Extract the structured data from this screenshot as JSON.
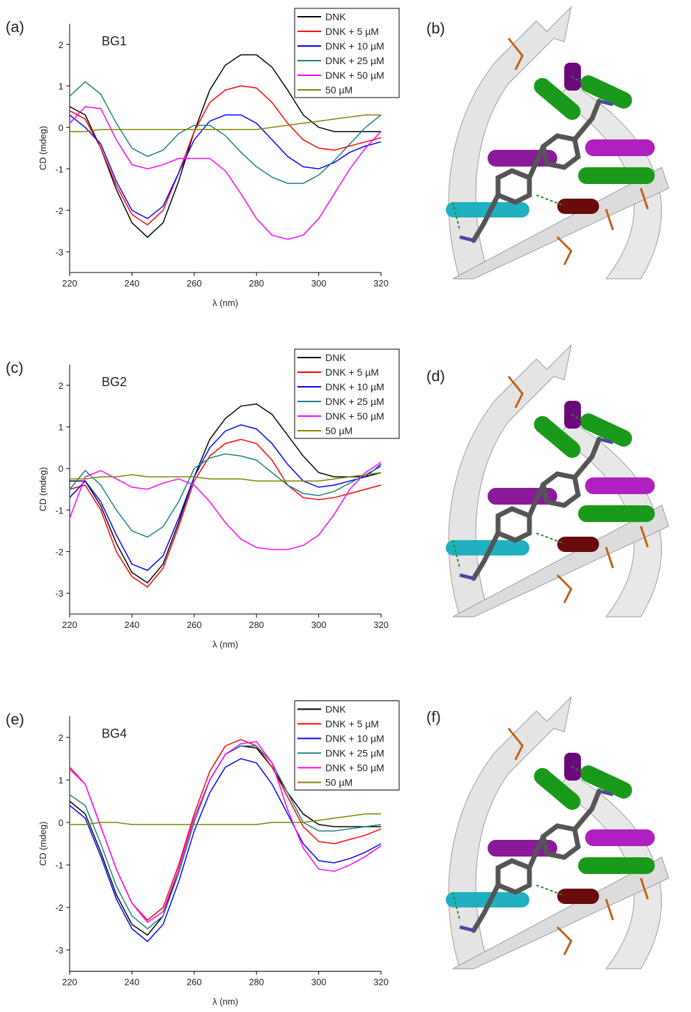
{
  "chart_data": [
    {
      "type": "line",
      "panel_label": "(a)",
      "annotation": "BG1",
      "xlabel": "λ (nm)",
      "ylabel": "CD (mdeg)",
      "x": [
        220,
        225,
        230,
        235,
        240,
        245,
        250,
        255,
        260,
        265,
        270,
        275,
        280,
        285,
        290,
        295,
        300,
        305,
        310,
        315,
        320
      ],
      "xlim": [
        220,
        320
      ],
      "xticks": [
        220,
        240,
        260,
        280,
        300,
        320
      ],
      "ylim": [
        -3.5,
        2.5
      ],
      "yticks": [
        -3,
        -2,
        -1,
        0,
        1,
        2
      ],
      "legend": "upper right",
      "series": [
        {
          "name": "DNK",
          "color": "#000000",
          "values": [
            0.5,
            0.3,
            -0.5,
            -1.5,
            -2.3,
            -2.65,
            -2.3,
            -1.3,
            -0.1,
            0.9,
            1.5,
            1.75,
            1.75,
            1.45,
            0.9,
            0.3,
            0,
            -0.1,
            -0.1,
            -0.1,
            -0.1
          ]
        },
        {
          "name": "DNK + 5 µM",
          "color": "#ff0000",
          "values": [
            0.4,
            0.2,
            -0.5,
            -1.4,
            -2.1,
            -2.35,
            -2.0,
            -1.1,
            -0.1,
            0.6,
            0.9,
            1.0,
            0.95,
            0.6,
            0.1,
            -0.3,
            -0.5,
            -0.55,
            -0.45,
            -0.35,
            -0.25
          ]
        },
        {
          "name": "DNK + 10 µM",
          "color": "#0000ff",
          "values": [
            0.3,
            0.0,
            -0.4,
            -1.3,
            -2.0,
            -2.2,
            -1.9,
            -1.1,
            -0.3,
            0.15,
            0.3,
            0.3,
            0.1,
            -0.3,
            -0.7,
            -0.95,
            -1.0,
            -0.85,
            -0.6,
            -0.45,
            -0.35
          ]
        },
        {
          "name": "DNK + 25 µM",
          "color": "#1a8080",
          "values": [
            0.75,
            1.1,
            0.8,
            0.1,
            -0.5,
            -0.7,
            -0.55,
            -0.15,
            0.05,
            0.05,
            -0.2,
            -0.6,
            -0.95,
            -1.2,
            -1.35,
            -1.35,
            -1.15,
            -0.8,
            -0.4,
            0.0,
            0.3
          ]
        },
        {
          "name": "DNK + 50 µM",
          "color": "#ff00ff",
          "values": [
            0.1,
            0.5,
            0.45,
            -0.3,
            -0.9,
            -1.0,
            -0.9,
            -0.75,
            -0.75,
            -0.75,
            -1.05,
            -1.6,
            -2.2,
            -2.6,
            -2.7,
            -2.6,
            -2.2,
            -1.6,
            -1.0,
            -0.5,
            -0.1
          ]
        },
        {
          "name": "50 µM",
          "color": "#808000",
          "values": [
            -0.1,
            -0.1,
            -0.05,
            -0.05,
            -0.05,
            -0.05,
            -0.05,
            -0.05,
            -0.05,
            -0.05,
            -0.05,
            -0.05,
            -0.05,
            0.0,
            0.05,
            0.1,
            0.15,
            0.2,
            0.25,
            0.3,
            0.3
          ]
        }
      ]
    },
    {
      "type": "line",
      "panel_label": "(c)",
      "annotation": "BG2",
      "xlabel": "λ (nm)",
      "ylabel": "CD (mdeg)",
      "x": [
        220,
        225,
        230,
        235,
        240,
        245,
        250,
        255,
        260,
        265,
        270,
        275,
        280,
        285,
        290,
        295,
        300,
        305,
        310,
        315,
        320
      ],
      "xlim": [
        220,
        320
      ],
      "xticks": [
        220,
        240,
        260,
        280,
        300,
        320
      ],
      "ylim": [
        -3.5,
        2.5
      ],
      "yticks": [
        -3,
        -2,
        -1,
        0,
        1,
        2
      ],
      "legend": "upper right",
      "series": [
        {
          "name": "DNK",
          "color": "#000000",
          "values": [
            -0.3,
            -0.3,
            -0.9,
            -1.8,
            -2.5,
            -2.75,
            -2.3,
            -1.3,
            -0.2,
            0.7,
            1.2,
            1.5,
            1.55,
            1.3,
            0.8,
            0.3,
            -0.1,
            -0.2,
            -0.2,
            -0.2,
            -0.1
          ]
        },
        {
          "name": "DNK + 5 µM",
          "color": "#ff0000",
          "values": [
            -0.5,
            -0.4,
            -1.0,
            -2.0,
            -2.6,
            -2.85,
            -2.4,
            -1.4,
            -0.3,
            0.3,
            0.6,
            0.7,
            0.6,
            0.2,
            -0.4,
            -0.7,
            -0.75,
            -0.7,
            -0.6,
            -0.5,
            -0.4
          ]
        },
        {
          "name": "DNK + 10 µM",
          "color": "#0000ff",
          "values": [
            -0.7,
            -0.3,
            -0.8,
            -1.6,
            -2.3,
            -2.45,
            -2.1,
            -1.2,
            -0.2,
            0.5,
            0.9,
            1.05,
            0.95,
            0.6,
            0.1,
            -0.3,
            -0.45,
            -0.4,
            -0.3,
            -0.2,
            0.1
          ]
        },
        {
          "name": "DNK + 25 µM",
          "color": "#1a8080",
          "values": [
            -0.5,
            -0.05,
            -0.4,
            -1.0,
            -1.5,
            -1.65,
            -1.4,
            -0.8,
            0.0,
            0.25,
            0.35,
            0.3,
            0.2,
            -0.1,
            -0.4,
            -0.6,
            -0.65,
            -0.55,
            -0.35,
            -0.15,
            0.05
          ]
        },
        {
          "name": "DNK + 50 µM",
          "color": "#ff00ff",
          "values": [
            -1.2,
            -0.2,
            -0.05,
            -0.25,
            -0.45,
            -0.5,
            -0.35,
            -0.25,
            -0.4,
            -0.8,
            -1.3,
            -1.7,
            -1.9,
            -1.95,
            -1.95,
            -1.85,
            -1.6,
            -1.1,
            -0.5,
            -0.1,
            0.15
          ]
        },
        {
          "name": "50 µM",
          "color": "#808000",
          "values": [
            -0.25,
            -0.25,
            -0.2,
            -0.2,
            -0.15,
            -0.2,
            -0.2,
            -0.2,
            -0.2,
            -0.25,
            -0.25,
            -0.25,
            -0.3,
            -0.3,
            -0.3,
            -0.3,
            -0.3,
            -0.25,
            -0.2,
            -0.15,
            -0.1
          ]
        }
      ]
    },
    {
      "type": "line",
      "panel_label": "(e)",
      "annotation": "BG4",
      "xlabel": "λ (nm)",
      "ylabel": "CD (mdeg)",
      "x": [
        220,
        225,
        230,
        235,
        240,
        245,
        250,
        255,
        260,
        265,
        270,
        275,
        280,
        285,
        290,
        295,
        300,
        305,
        310,
        315,
        320
      ],
      "xlim": [
        220,
        320
      ],
      "xticks": [
        220,
        240,
        260,
        280,
        300,
        320
      ],
      "ylim": [
        -3.5,
        2.5
      ],
      "yticks": [
        -3,
        -2,
        -1,
        0,
        1,
        2
      ],
      "legend": "upper right",
      "series": [
        {
          "name": "DNK",
          "color": "#000000",
          "values": [
            0.5,
            0.2,
            -0.7,
            -1.7,
            -2.4,
            -2.65,
            -2.2,
            -1.1,
            0.1,
            1.0,
            1.6,
            1.8,
            1.75,
            1.3,
            0.7,
            0.2,
            -0.05,
            -0.1,
            -0.1,
            -0.1,
            -0.1
          ]
        },
        {
          "name": "DNK + 5 µM",
          "color": "#ff0000",
          "values": [
            1.3,
            0.9,
            -0.1,
            -1.1,
            -1.9,
            -2.3,
            -2.0,
            -1.0,
            0.2,
            1.2,
            1.8,
            1.95,
            1.8,
            1.3,
            0.6,
            -0.1,
            -0.45,
            -0.5,
            -0.4,
            -0.3,
            -0.15
          ]
        },
        {
          "name": "DNK + 10 µM",
          "color": "#0000ff",
          "values": [
            0.4,
            0.1,
            -0.8,
            -1.8,
            -2.5,
            -2.8,
            -2.4,
            -1.4,
            -0.2,
            0.7,
            1.3,
            1.5,
            1.4,
            0.9,
            0.2,
            -0.5,
            -0.9,
            -0.95,
            -0.85,
            -0.7,
            -0.5
          ]
        },
        {
          "name": "DNK + 25 µM",
          "color": "#1a8080",
          "values": [
            0.65,
            0.4,
            -0.5,
            -1.5,
            -2.2,
            -2.5,
            -2.2,
            -1.2,
            0.0,
            1.0,
            1.6,
            1.8,
            1.8,
            1.4,
            0.7,
            0.0,
            -0.2,
            -0.2,
            -0.15,
            -0.1,
            -0.05
          ]
        },
        {
          "name": "DNK + 50 µM",
          "color": "#ff00ff",
          "values": [
            1.25,
            0.9,
            -0.1,
            -1.1,
            -1.9,
            -2.35,
            -2.1,
            -1.1,
            0.1,
            1.0,
            1.6,
            1.85,
            1.9,
            1.4,
            0.3,
            -0.6,
            -1.1,
            -1.15,
            -1.0,
            -0.8,
            -0.55
          ]
        },
        {
          "name": "50 µM",
          "color": "#808000",
          "values": [
            -0.05,
            -0.05,
            0.0,
            0.0,
            -0.05,
            -0.05,
            -0.05,
            -0.05,
            -0.05,
            -0.05,
            -0.05,
            -0.05,
            -0.05,
            0.0,
            0.0,
            0.0,
            0.05,
            0.1,
            0.15,
            0.2,
            0.2
          ]
        }
      ]
    }
  ],
  "images": [
    {
      "label": "(b)"
    },
    {
      "label": "(d)"
    },
    {
      "label": "(f)"
    }
  ]
}
